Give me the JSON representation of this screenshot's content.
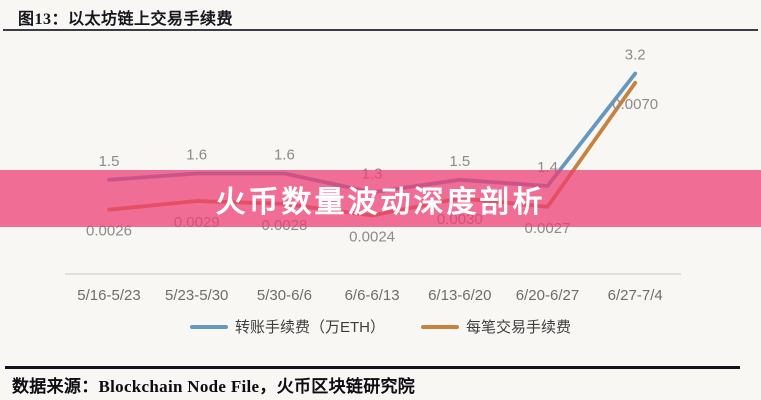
{
  "header": {
    "title": "图13：以太坊链上交易手续费"
  },
  "overlay": {
    "text": "火币数量波动深度剖析",
    "color": "#ee3d74",
    "opacity": 0.74
  },
  "chart_data": {
    "type": "line",
    "categories": [
      "5/16-5/23",
      "5/23-5/30",
      "5/30-6/6",
      "6/6-6/13",
      "6/13-6/20",
      "6/20-6/27",
      "6/27-7/4"
    ],
    "series": [
      {
        "name": "转账手续费（万ETH）",
        "axis": "left",
        "color": "#6598c0",
        "values": [
          1.5,
          1.6,
          1.6,
          1.3,
          1.5,
          1.4,
          3.2
        ],
        "point_labels": [
          "1.5",
          "1.6",
          "1.6",
          "1.3",
          "1.5",
          "1.4",
          "3.2"
        ]
      },
      {
        "name": "每笔交易手续费",
        "axis": "right",
        "color": "#c8823f",
        "values": [
          0.0026,
          0.0029,
          0.0028,
          0.0024,
          0.003,
          0.0027,
          0.007
        ],
        "point_labels": [
          "0.0026",
          "0.0029",
          "0.0028",
          "0.0024",
          "0.0030",
          "0.0027",
          "0.0070"
        ]
      }
    ],
    "ylim_left": [
      1.0,
      3.4
    ],
    "ylim_right": [
      0.002,
      0.0072
    ],
    "grid": false,
    "y_axis_visible": false,
    "legend_position": "bottom",
    "point_label_color": "#8b8b8b",
    "tick_label_color": "#6d6d6d",
    "axis_line_color": "#d8d8d6"
  },
  "footer": {
    "source": "数据来源：Blockchain Node File，火币区块链研究院"
  }
}
